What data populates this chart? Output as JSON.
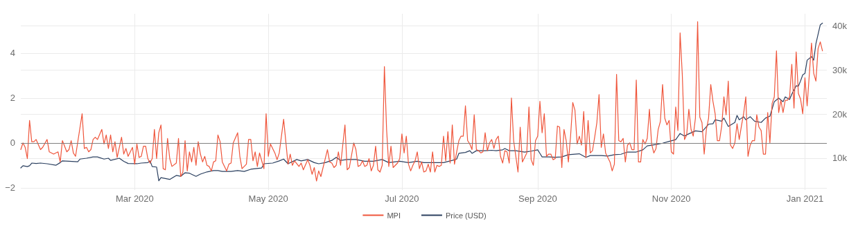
{
  "chart_data": {
    "type": "line",
    "marker": "none",
    "grid": true,
    "legend": "bottom",
    "xlim": [
      "2020-01-09",
      "2021-01-11"
    ],
    "xticks": [
      {
        "value": "2020-03-01",
        "label": "Mar 2020"
      },
      {
        "value": "2020-05-01",
        "label": "May 2020"
      },
      {
        "value": "2020-07-01",
        "label": "Jul 2020"
      },
      {
        "value": "2020-09-01",
        "label": "Sep 2020"
      },
      {
        "value": "2020-11-01",
        "label": "Nov 2020"
      },
      {
        "value": "2021-01-01",
        "label": "Jan 2021"
      }
    ],
    "ylim": [
      -2.1,
      5.75
    ],
    "yticks": [
      {
        "value": -2,
        "label": "−2"
      },
      0,
      2,
      4
    ],
    "y2lim": [
      2800,
      42700
    ],
    "y2ticks": [
      {
        "value": 10000,
        "label": "10k"
      },
      {
        "value": 20000,
        "label": "20k"
      },
      {
        "value": 30000,
        "label": "30k"
      },
      {
        "value": 40000,
        "label": "40k"
      }
    ],
    "ref_lines": [
      {
        "axis": "y",
        "value": 0,
        "color": "#7f7f7f"
      }
    ],
    "series": [
      {
        "name": "MPI",
        "color": "#ef553b",
        "x": [
          "2020-01-09",
          "2020-01-10",
          "2020-01-11",
          "2020-01-12",
          "2020-01-13",
          "2020-01-14",
          "2020-01-15",
          "2020-01-16",
          "2020-01-18",
          "2020-01-19",
          "2020-01-21",
          "2020-01-22",
          "2020-01-24",
          "2020-01-26",
          "2020-01-27",
          "2020-01-28",
          "2020-01-30",
          "2020-01-31",
          "2020-02-01",
          "2020-02-02",
          "2020-02-03",
          "2020-02-06",
          "2020-02-07",
          "2020-02-08",
          "2020-02-09",
          "2020-02-10",
          "2020-02-11",
          "2020-02-12",
          "2020-02-13",
          "2020-02-15",
          "2020-02-16",
          "2020-02-17",
          "2020-02-18",
          "2020-02-19",
          "2020-02-20",
          "2020-02-21",
          "2020-02-22",
          "2020-02-24",
          "2020-02-25",
          "2020-02-26",
          "2020-02-27",
          "2020-02-29",
          "2020-03-01",
          "2020-03-02",
          "2020-03-03",
          "2020-03-04",
          "2020-03-05",
          "2020-03-06",
          "2020-03-07",
          "2020-03-08",
          "2020-03-09",
          "2020-03-10",
          "2020-03-11",
          "2020-03-12",
          "2020-03-13",
          "2020-03-14",
          "2020-03-15",
          "2020-03-16",
          "2020-03-17",
          "2020-03-18",
          "2020-03-20",
          "2020-03-21",
          "2020-03-22",
          "2020-03-23",
          "2020-03-24",
          "2020-03-25",
          "2020-03-26",
          "2020-03-27",
          "2020-03-28",
          "2020-03-29",
          "2020-03-30",
          "2020-03-31",
          "2020-04-01",
          "2020-04-02",
          "2020-04-03",
          "2020-04-04",
          "2020-04-05",
          "2020-04-06",
          "2020-04-07",
          "2020-04-08",
          "2020-04-09",
          "2020-04-10",
          "2020-04-12",
          "2020-04-13",
          "2020-04-14",
          "2020-04-15",
          "2020-04-17",
          "2020-04-18",
          "2020-04-19",
          "2020-04-21",
          "2020-04-22",
          "2020-04-23",
          "2020-04-24",
          "2020-04-25",
          "2020-04-26",
          "2020-04-27",
          "2020-04-28",
          "2020-04-29",
          "2020-04-30",
          "2020-05-01",
          "2020-05-02",
          "2020-05-03",
          "2020-05-04",
          "2020-05-05",
          "2020-05-06",
          "2020-05-08",
          "2020-05-10",
          "2020-05-11",
          "2020-05-12",
          "2020-05-13",
          "2020-05-15",
          "2020-05-16",
          "2020-05-17",
          "2020-05-19",
          "2020-05-20",
          "2020-05-21",
          "2020-05-22",
          "2020-05-23",
          "2020-05-24",
          "2020-05-25",
          "2020-05-27",
          "2020-05-28",
          "2020-05-29",
          "2020-05-30",
          "2020-05-31",
          "2020-06-01",
          "2020-06-02",
          "2020-06-03",
          "2020-06-05",
          "2020-06-06",
          "2020-06-07",
          "2020-06-09",
          "2020-06-10",
          "2020-06-11",
          "2020-06-12",
          "2020-06-13",
          "2020-06-14",
          "2020-06-15",
          "2020-06-16",
          "2020-06-17",
          "2020-06-18",
          "2020-06-19",
          "2020-06-20",
          "2020-06-21",
          "2020-06-22",
          "2020-06-23",
          "2020-06-24",
          "2020-06-25",
          "2020-06-26",
          "2020-06-27",
          "2020-06-28",
          "2020-06-29",
          "2020-06-30",
          "2020-07-01",
          "2020-07-02",
          "2020-07-03",
          "2020-07-04",
          "2020-07-05",
          "2020-07-06",
          "2020-07-07",
          "2020-07-08",
          "2020-07-09",
          "2020-07-10",
          "2020-07-11",
          "2020-07-12",
          "2020-07-13",
          "2020-07-14",
          "2020-07-15",
          "2020-07-16",
          "2020-07-17",
          "2020-07-18",
          "2020-07-19",
          "2020-07-20",
          "2020-07-21",
          "2020-07-22",
          "2020-07-23",
          "2020-07-24",
          "2020-07-25",
          "2020-07-26",
          "2020-07-27",
          "2020-07-28",
          "2020-07-29",
          "2020-07-30",
          "2020-07-31",
          "2020-08-01",
          "2020-08-02",
          "2020-08-03",
          "2020-08-04",
          "2020-08-05",
          "2020-08-06",
          "2020-08-07",
          "2020-08-08",
          "2020-08-09",
          "2020-08-10",
          "2020-08-11",
          "2020-08-12",
          "2020-08-13",
          "2020-08-14",
          "2020-08-15",
          "2020-08-16",
          "2020-08-17",
          "2020-08-18",
          "2020-08-19",
          "2020-08-20",
          "2020-08-21",
          "2020-08-22",
          "2020-08-23",
          "2020-08-24",
          "2020-08-25",
          "2020-08-26",
          "2020-08-27",
          "2020-08-28",
          "2020-08-29",
          "2020-08-30",
          "2020-08-31",
          "2020-09-01",
          "2020-09-02",
          "2020-09-03",
          "2020-09-04",
          "2020-09-05",
          "2020-09-06",
          "2020-09-07",
          "2020-09-08",
          "2020-09-09",
          "2020-09-10",
          "2020-09-11",
          "2020-09-12",
          "2020-09-13",
          "2020-09-14",
          "2020-09-15",
          "2020-09-16",
          "2020-09-17",
          "2020-09-18",
          "2020-09-19",
          "2020-09-20",
          "2020-09-21",
          "2020-09-22",
          "2020-09-23",
          "2020-09-24",
          "2020-09-25",
          "2020-09-26",
          "2020-09-27",
          "2020-09-28",
          "2020-09-29",
          "2020-09-30",
          "2020-10-01",
          "2020-10-02",
          "2020-10-03",
          "2020-10-04",
          "2020-10-05",
          "2020-10-06",
          "2020-10-07",
          "2020-10-08",
          "2020-10-09",
          "2020-10-10",
          "2020-10-11",
          "2020-10-12",
          "2020-10-13",
          "2020-10-14",
          "2020-10-15",
          "2020-10-16",
          "2020-10-17",
          "2020-10-18",
          "2020-10-19",
          "2020-10-20",
          "2020-10-21",
          "2020-10-22",
          "2020-10-23",
          "2020-10-24",
          "2020-10-25",
          "2020-10-26",
          "2020-10-27",
          "2020-10-28",
          "2020-10-29",
          "2020-10-30",
          "2020-10-31",
          "2020-11-01",
          "2020-11-02",
          "2020-11-03",
          "2020-11-04",
          "2020-11-05",
          "2020-11-06",
          "2020-11-07",
          "2020-11-08",
          "2020-11-09",
          "2020-11-10",
          "2020-11-11",
          "2020-11-12",
          "2020-11-13",
          "2020-11-14",
          "2020-11-15",
          "2020-11-16",
          "2020-11-17",
          "2020-11-18",
          "2020-11-19",
          "2020-11-20",
          "2020-11-21",
          "2020-11-22",
          "2020-11-23",
          "2020-11-24",
          "2020-11-25",
          "2020-11-26",
          "2020-11-27",
          "2020-11-28",
          "2020-11-29",
          "2020-11-30",
          "2020-12-01",
          "2020-12-02",
          "2020-12-03",
          "2020-12-04",
          "2020-12-05",
          "2020-12-06",
          "2020-12-07",
          "2020-12-08",
          "2020-12-09",
          "2020-12-10",
          "2020-12-11",
          "2020-12-12",
          "2020-12-13",
          "2020-12-14",
          "2020-12-15",
          "2020-12-16",
          "2020-12-17",
          "2020-12-18",
          "2020-12-19",
          "2020-12-20",
          "2020-12-21",
          "2020-12-22",
          "2020-12-23",
          "2020-12-24",
          "2020-12-25",
          "2020-12-26",
          "2020-12-27",
          "2020-12-28",
          "2020-12-29",
          "2020-12-30",
          "2020-12-31",
          "2021-01-01",
          "2021-01-02",
          "2021-01-03",
          "2021-01-04",
          "2021-01-05",
          "2021-01-06",
          "2021-01-07",
          "2021-01-08",
          "2021-01-09"
        ],
        "values": [
          -0.3,
          0,
          -0.2,
          -0.7,
          1.0,
          0.05,
          0.05,
          0.15,
          -0.3,
          -0.2,
          0.15,
          -0.4,
          -0.5,
          -0.4,
          -0.85,
          0.1,
          -0.4,
          -0.3,
          0.1,
          -0.45,
          -0.6,
          1.3,
          -0.25,
          -0.2,
          -0.4,
          -0.3,
          0.15,
          0.25,
          0.15,
          0.6,
          -0.05,
          0.35,
          -0.25,
          0.35,
          -0.4,
          0.05,
          -0.65,
          0.25,
          -0.5,
          -0.25,
          -0.6,
          -0.2,
          -0.95,
          -0.05,
          -0.65,
          -0.6,
          -0.15,
          -0.15,
          -0.7,
          -0.9,
          -0.7,
          0.6,
          -0.7,
          0.45,
          0.8,
          -1.15,
          -1.2,
          0.2,
          -0.7,
          -1.05,
          -0.9,
          0.2,
          -1.5,
          -1.3,
          0.1,
          -1.25,
          -0.4,
          -0.85,
          -0.2,
          -1.0,
          0.05,
          -0.5,
          -0.85,
          -0.6,
          -1.0,
          -1.05,
          -1.25,
          -0.85,
          -0.8,
          0.35,
          0.05,
          -0.85,
          -1.25,
          -0.95,
          -0.9,
          0,
          0.45,
          -0.6,
          -1.15,
          -0.95,
          0.15,
          0.15,
          -0.8,
          -0.4,
          -1.05,
          -0.45,
          -0.8,
          -1.15,
          1.3,
          -0.6,
          -0.05,
          -0.25,
          -0.45,
          -0.75,
          -0.45,
          1.05,
          -0.95,
          -0.5,
          -1.0,
          -0.8,
          -1.05,
          -0.9,
          -1.2,
          -0.75,
          -1.0,
          -1.4,
          -1.1,
          -1.7,
          -1.25,
          -1.5,
          -0.7,
          -0.3,
          -0.85,
          -0.9,
          -1.1,
          -1.0,
          -0.4,
          -1.0,
          0.8,
          -1.2,
          -1.1,
          0,
          -0.3,
          -1.05,
          -1.0,
          -0.8,
          -1.05,
          -1.0,
          -0.7,
          -1.25,
          -1.0,
          -0.15,
          -1.2,
          -1.3,
          -1.0,
          3.4,
          0.6,
          -1.05,
          -0.15,
          -1.1,
          -1.0,
          -0.9,
          -0.7,
          0.4,
          -0.45,
          0.3,
          -0.95,
          -1.25,
          -1.0,
          -0.8,
          -0.4,
          -1.15,
          -0.85,
          -1.3,
          -1.25,
          -0.95,
          -1.3,
          -0.4,
          -1.3,
          -1.0,
          -1.05,
          -1.0,
          0.3,
          -0.8,
          0.5,
          -0.9,
          0.8,
          -0.95,
          -0.4,
          0.1,
          0.3,
          0.3,
          1.65,
          0.1,
          -0.05,
          -0.3,
          1.25,
          -0.3,
          -0.35,
          -0.45,
          -0.4,
          0.45,
          -0.35,
          0,
          0.15,
          -0.25,
          0.15,
          0.3,
          -0.6,
          -0.9,
          -0.35,
          -0.4,
          -0.9,
          2.0,
          0.1,
          -0.6,
          -1.3,
          0.7,
          -0.85,
          -0.65,
          -0.45,
          1.6,
          -0.75,
          -1.0,
          0.1,
          0.3,
          1.85,
          0.45,
          1.3,
          -0.6,
          -0.5,
          -0.5,
          -0.75,
          -0.7,
          0.75,
          0.7,
          -1.1,
          0.6,
          0.1,
          -0.85,
          0.3,
          1.8,
          1.45,
          -0.05,
          0.3,
          -0.1,
          1.4,
          -0.65,
          1.0,
          -0.45,
          -0.35,
          0.25,
          0.9,
          2.15,
          -0.2,
          0.4,
          -0.45,
          -0.65,
          -0.85,
          -1.25,
          -0.95,
          3.05,
          0.1,
          0.05,
          0.2,
          -0.85,
          -0.1,
          0,
          -0.3,
          -0.3,
          2.8,
          -0.85,
          -0.85,
          0.15,
          -0.05,
          0.2,
          1.5,
          -0.05,
          -0.45,
          -0.25,
          0.6,
          0.95,
          2.6,
          1.1,
          0.8,
          1.0,
          -0.4,
          -0.5,
          1.6,
          0.55,
          4.9,
          3.05,
          0.15,
          0.35,
          1.5,
          0.6,
          0.3,
          1.1,
          5.4,
          1.15,
          0.9,
          -0.5,
          0.6,
          1.1,
          2.6,
          1.85,
          1.3,
          0.1,
          0.1,
          0.75,
          2.05,
          1.25,
          2.75,
          -0.1,
          -0.25,
          0,
          0.85,
          0.15,
          0.75,
          1.3,
          2.05,
          -0.6,
          -0.1,
          0.1,
          0.1,
          1.25,
          0.7,
          0.55,
          -0.5,
          -0.5,
          1.35,
          0,
          1.75,
          2.05,
          4.1,
          1.35,
          1.9,
          1.35,
          1.9,
          1.9,
          2.05,
          3.5,
          1.55,
          4.05,
          2.2,
          1.95,
          1.3,
          2.9,
          1.65,
          3.05,
          4.45,
          3.1,
          2.75,
          4.2,
          4.5,
          4.1
        ]
      },
      {
        "name": "Price (USD)",
        "color": "#2a3f5f",
        "axis": "y2",
        "x": [
          "2020-01-09",
          "2020-01-10",
          "2020-01-12",
          "2020-01-13",
          "2020-01-14",
          "2020-01-16",
          "2020-01-18",
          "2020-01-21",
          "2020-01-25",
          "2020-01-27",
          "2020-01-28",
          "2020-01-31",
          "2020-02-04",
          "2020-02-05",
          "2020-02-08",
          "2020-02-11",
          "2020-02-13",
          "2020-02-16",
          "2020-02-18",
          "2020-02-19",
          "2020-02-23",
          "2020-02-25",
          "2020-02-27",
          "2020-03-02",
          "2020-03-04",
          "2020-03-07",
          "2020-03-08",
          "2020-03-09",
          "2020-03-11",
          "2020-03-12",
          "2020-03-13",
          "2020-03-17",
          "2020-03-20",
          "2020-03-22",
          "2020-03-24",
          "2020-03-26",
          "2020-03-29",
          "2020-03-31",
          "2020-04-03",
          "2020-04-06",
          "2020-04-08",
          "2020-04-10",
          "2020-04-14",
          "2020-04-17",
          "2020-04-20",
          "2020-04-23",
          "2020-04-28",
          "2020-04-29",
          "2020-05-03",
          "2020-05-06",
          "2020-05-08",
          "2020-05-10",
          "2020-05-14",
          "2020-05-16",
          "2020-05-19",
          "2020-05-22",
          "2020-05-24",
          "2020-05-27",
          "2020-05-30",
          "2020-06-01",
          "2020-06-03",
          "2020-06-06",
          "2020-06-10",
          "2020-06-14",
          "2020-06-18",
          "2020-06-22",
          "2020-06-25",
          "2020-06-30",
          "2020-07-04",
          "2020-07-08",
          "2020-07-11",
          "2020-07-20",
          "2020-07-24",
          "2020-07-26",
          "2020-07-27",
          "2020-07-30",
          "2020-08-01",
          "2020-08-02",
          "2020-08-04",
          "2020-08-08",
          "2020-08-11",
          "2020-08-13",
          "2020-08-16",
          "2020-08-17",
          "2020-08-19",
          "2020-08-22",
          "2020-08-26",
          "2020-08-29",
          "2020-09-01",
          "2020-09-02",
          "2020-09-03",
          "2020-09-06",
          "2020-09-09",
          "2020-09-12",
          "2020-09-15",
          "2020-09-20",
          "2020-09-23",
          "2020-09-25",
          "2020-09-30",
          "2020-10-03",
          "2020-10-06",
          "2020-10-09",
          "2020-10-12",
          "2020-10-16",
          "2020-10-19",
          "2020-10-21",
          "2020-10-25",
          "2020-10-28",
          "2020-10-31",
          "2020-11-03",
          "2020-11-05",
          "2020-11-07",
          "2020-11-08",
          "2020-11-12",
          "2020-11-15",
          "2020-11-18",
          "2020-11-20",
          "2020-11-21",
          "2020-11-24",
          "2020-11-25",
          "2020-11-27",
          "2020-11-30",
          "2020-12-01",
          "2020-12-02",
          "2020-12-04",
          "2020-12-05",
          "2020-12-07",
          "2020-12-09",
          "2020-12-12",
          "2020-12-14",
          "2020-12-16",
          "2020-12-18",
          "2020-12-20",
          "2020-12-22",
          "2020-12-23",
          "2020-12-25",
          "2020-12-26",
          "2020-12-28",
          "2020-12-29",
          "2020-12-30",
          "2020-12-31",
          "2021-01-01",
          "2021-01-02",
          "2021-01-04",
          "2021-01-05",
          "2021-01-06",
          "2021-01-08",
          "2021-01-09"
        ],
        "values": [
          7800,
          8300,
          8100,
          8300,
          8900,
          8800,
          8900,
          8750,
          8400,
          9000,
          9400,
          9300,
          9200,
          9800,
          10000,
          10300,
          10300,
          9800,
          10000,
          9500,
          10000,
          9300,
          8800,
          8750,
          8900,
          9000,
          9400,
          8100,
          8000,
          4900,
          5600,
          5200,
          6100,
          5900,
          6700,
          6600,
          5900,
          6400,
          6900,
          7200,
          7200,
          7000,
          7000,
          7200,
          7000,
          7500,
          7800,
          8750,
          8900,
          9400,
          9800,
          8750,
          9700,
          9400,
          9700,
          9000,
          8750,
          9000,
          9500,
          10200,
          9500,
          9700,
          9700,
          9300,
          9300,
          9700,
          9000,
          9300,
          9000,
          9300,
          9000,
          9000,
          9500,
          9800,
          11100,
          11300,
          11700,
          11100,
          11700,
          11700,
          11800,
          11700,
          11900,
          12200,
          11700,
          11700,
          11400,
          11600,
          11900,
          11100,
          10300,
          10300,
          10200,
          10300,
          10800,
          11000,
          10200,
          10600,
          10600,
          10500,
          10800,
          10900,
          11400,
          11400,
          11900,
          12800,
          13100,
          13400,
          13800,
          14200,
          15600,
          15000,
          15300,
          16200,
          16000,
          17700,
          17800,
          18700,
          18400,
          19100,
          17200,
          18100,
          19700,
          18700,
          19400,
          18700,
          19400,
          18400,
          18100,
          19100,
          19500,
          22800,
          23600,
          22800,
          23900,
          23300,
          24500,
          26400,
          26300,
          27500,
          28900,
          29200,
          32200,
          33000,
          32200,
          35900,
          40200,
          40600
        ]
      }
    ]
  }
}
